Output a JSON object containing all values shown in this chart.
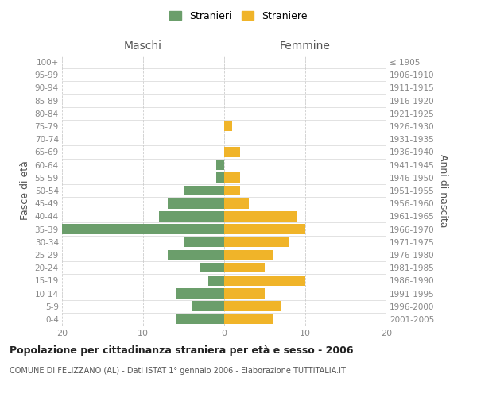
{
  "age_groups": [
    "0-4",
    "5-9",
    "10-14",
    "15-19",
    "20-24",
    "25-29",
    "30-34",
    "35-39",
    "40-44",
    "45-49",
    "50-54",
    "55-59",
    "60-64",
    "65-69",
    "70-74",
    "75-79",
    "80-84",
    "85-89",
    "90-94",
    "95-99",
    "100+"
  ],
  "birth_years": [
    "2001-2005",
    "1996-2000",
    "1991-1995",
    "1986-1990",
    "1981-1985",
    "1976-1980",
    "1971-1975",
    "1966-1970",
    "1961-1965",
    "1956-1960",
    "1951-1955",
    "1946-1950",
    "1941-1945",
    "1936-1940",
    "1931-1935",
    "1926-1930",
    "1921-1925",
    "1916-1920",
    "1911-1915",
    "1906-1910",
    "≤ 1905"
  ],
  "maschi": [
    6,
    4,
    6,
    2,
    3,
    7,
    5,
    20,
    8,
    7,
    5,
    1,
    1,
    0,
    0,
    0,
    0,
    0,
    0,
    0,
    0
  ],
  "femmine": [
    6,
    7,
    5,
    10,
    5,
    6,
    8,
    10,
    9,
    3,
    2,
    2,
    0,
    2,
    0,
    1,
    0,
    0,
    0,
    0,
    0
  ],
  "color_maschi": "#6b9e6b",
  "color_femmine": "#f0b429",
  "title": "Popolazione per cittadinanza straniera per età e sesso - 2006",
  "subtitle": "COMUNE DI FELIZZANO (AL) - Dati ISTAT 1° gennaio 2006 - Elaborazione TUTTITALIA.IT",
  "ylabel_left": "Fasce di età",
  "ylabel_right": "Anni di nascita",
  "header_left": "Maschi",
  "header_right": "Femmine",
  "xlim": 20,
  "legend_stranieri": "Stranieri",
  "legend_straniere": "Straniere",
  "background_color": "#ffffff",
  "grid_color": "#cccccc",
  "tick_label_color": "#888888",
  "axis_label_color": "#555555"
}
